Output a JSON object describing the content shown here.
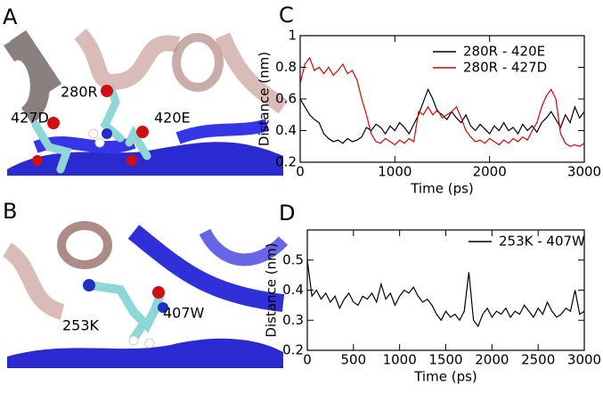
{
  "images": [
    {
      "label": "A",
      "residues": [
        "280R",
        "427D",
        "420E"
      ]
    },
    {
      "label": "B",
      "residues": [
        "253K",
        "407W"
      ]
    }
  ],
  "chart_data": [
    {
      "type": "line",
      "label": "C",
      "xlabel": "Time (ps)",
      "ylabel": "Distance (nm)",
      "xlim": [
        0,
        3000
      ],
      "xticks": [
        0,
        1000,
        2000,
        3000
      ],
      "ylim": [
        0.2,
        1
      ],
      "yticks": [
        0.2,
        0.4,
        0.6,
        0.8,
        1
      ],
      "legend": "upper right",
      "x": [
        0,
        50,
        100,
        150,
        200,
        250,
        300,
        350,
        400,
        450,
        500,
        550,
        600,
        650,
        700,
        750,
        800,
        850,
        900,
        950,
        1000,
        1050,
        1100,
        1150,
        1200,
        1250,
        1300,
        1350,
        1400,
        1450,
        1500,
        1550,
        1600,
        1650,
        1700,
        1750,
        1800,
        1850,
        1900,
        1950,
        2000,
        2050,
        2100,
        2150,
        2200,
        2250,
        2300,
        2350,
        2400,
        2450,
        2500,
        2550,
        2600,
        2650,
        2700,
        2750,
        2800,
        2850,
        2900,
        2950,
        3000
      ],
      "series": [
        {
          "name": "280R - 420E",
          "color": "#000000",
          "values": [
            0.6,
            0.55,
            0.5,
            0.47,
            0.45,
            0.38,
            0.35,
            0.33,
            0.34,
            0.32,
            0.35,
            0.33,
            0.34,
            0.36,
            0.42,
            0.4,
            0.44,
            0.42,
            0.38,
            0.43,
            0.4,
            0.45,
            0.42,
            0.38,
            0.44,
            0.5,
            0.58,
            0.66,
            0.6,
            0.52,
            0.5,
            0.47,
            0.52,
            0.48,
            0.45,
            0.5,
            0.43,
            0.4,
            0.44,
            0.41,
            0.38,
            0.43,
            0.4,
            0.45,
            0.4,
            0.42,
            0.38,
            0.44,
            0.4,
            0.43,
            0.39,
            0.45,
            0.48,
            0.52,
            0.47,
            0.42,
            0.5,
            0.45,
            0.55,
            0.48,
            0.52
          ]
        },
        {
          "name": "280R - 427D",
          "color": "#e00000",
          "values": [
            0.7,
            0.82,
            0.86,
            0.78,
            0.8,
            0.76,
            0.8,
            0.75,
            0.78,
            0.82,
            0.76,
            0.78,
            0.72,
            0.6,
            0.5,
            0.38,
            0.33,
            0.32,
            0.35,
            0.33,
            0.31,
            0.34,
            0.32,
            0.35,
            0.33,
            0.52,
            0.5,
            0.55,
            0.5,
            0.53,
            0.48,
            0.5,
            0.52,
            0.55,
            0.48,
            0.4,
            0.36,
            0.33,
            0.34,
            0.32,
            0.35,
            0.33,
            0.31,
            0.34,
            0.32,
            0.35,
            0.33,
            0.36,
            0.34,
            0.4,
            0.45,
            0.55,
            0.62,
            0.66,
            0.6,
            0.38,
            0.32,
            0.3,
            0.31,
            0.3,
            0.32
          ]
        }
      ]
    },
    {
      "type": "line",
      "label": "D",
      "xlabel": "Time (ps)",
      "ylabel": "Distance (nm)",
      "xlim": [
        0,
        3000
      ],
      "xticks": [
        0,
        500,
        1000,
        1500,
        2000,
        2500,
        3000
      ],
      "ylim": [
        0.2,
        0.6
      ],
      "yticks": [
        0.2,
        0.3,
        0.4,
        0.5
      ],
      "legend": "upper right",
      "x": [
        0,
        50,
        100,
        150,
        200,
        250,
        300,
        350,
        400,
        450,
        500,
        550,
        600,
        650,
        700,
        750,
        800,
        850,
        900,
        950,
        1000,
        1050,
        1100,
        1150,
        1200,
        1250,
        1300,
        1350,
        1400,
        1450,
        1500,
        1550,
        1600,
        1650,
        1700,
        1750,
        1800,
        1850,
        1900,
        1950,
        2000,
        2050,
        2100,
        2150,
        2200,
        2250,
        2300,
        2350,
        2400,
        2450,
        2500,
        2550,
        2600,
        2650,
        2700,
        2750,
        2800,
        2850,
        2900,
        2950,
        3000
      ],
      "series": [
        {
          "name": "253K - 407W",
          "color": "#000000",
          "values": [
            0.5,
            0.38,
            0.4,
            0.37,
            0.39,
            0.36,
            0.38,
            0.34,
            0.37,
            0.39,
            0.36,
            0.35,
            0.38,
            0.37,
            0.39,
            0.36,
            0.42,
            0.37,
            0.39,
            0.35,
            0.38,
            0.4,
            0.39,
            0.41,
            0.38,
            0.36,
            0.37,
            0.35,
            0.32,
            0.3,
            0.33,
            0.31,
            0.32,
            0.3,
            0.33,
            0.46,
            0.3,
            0.28,
            0.32,
            0.34,
            0.31,
            0.33,
            0.32,
            0.34,
            0.31,
            0.33,
            0.32,
            0.35,
            0.33,
            0.31,
            0.34,
            0.32,
            0.36,
            0.33,
            0.31,
            0.32,
            0.34,
            0.33,
            0.4,
            0.32,
            0.33
          ]
        }
      ]
    }
  ]
}
